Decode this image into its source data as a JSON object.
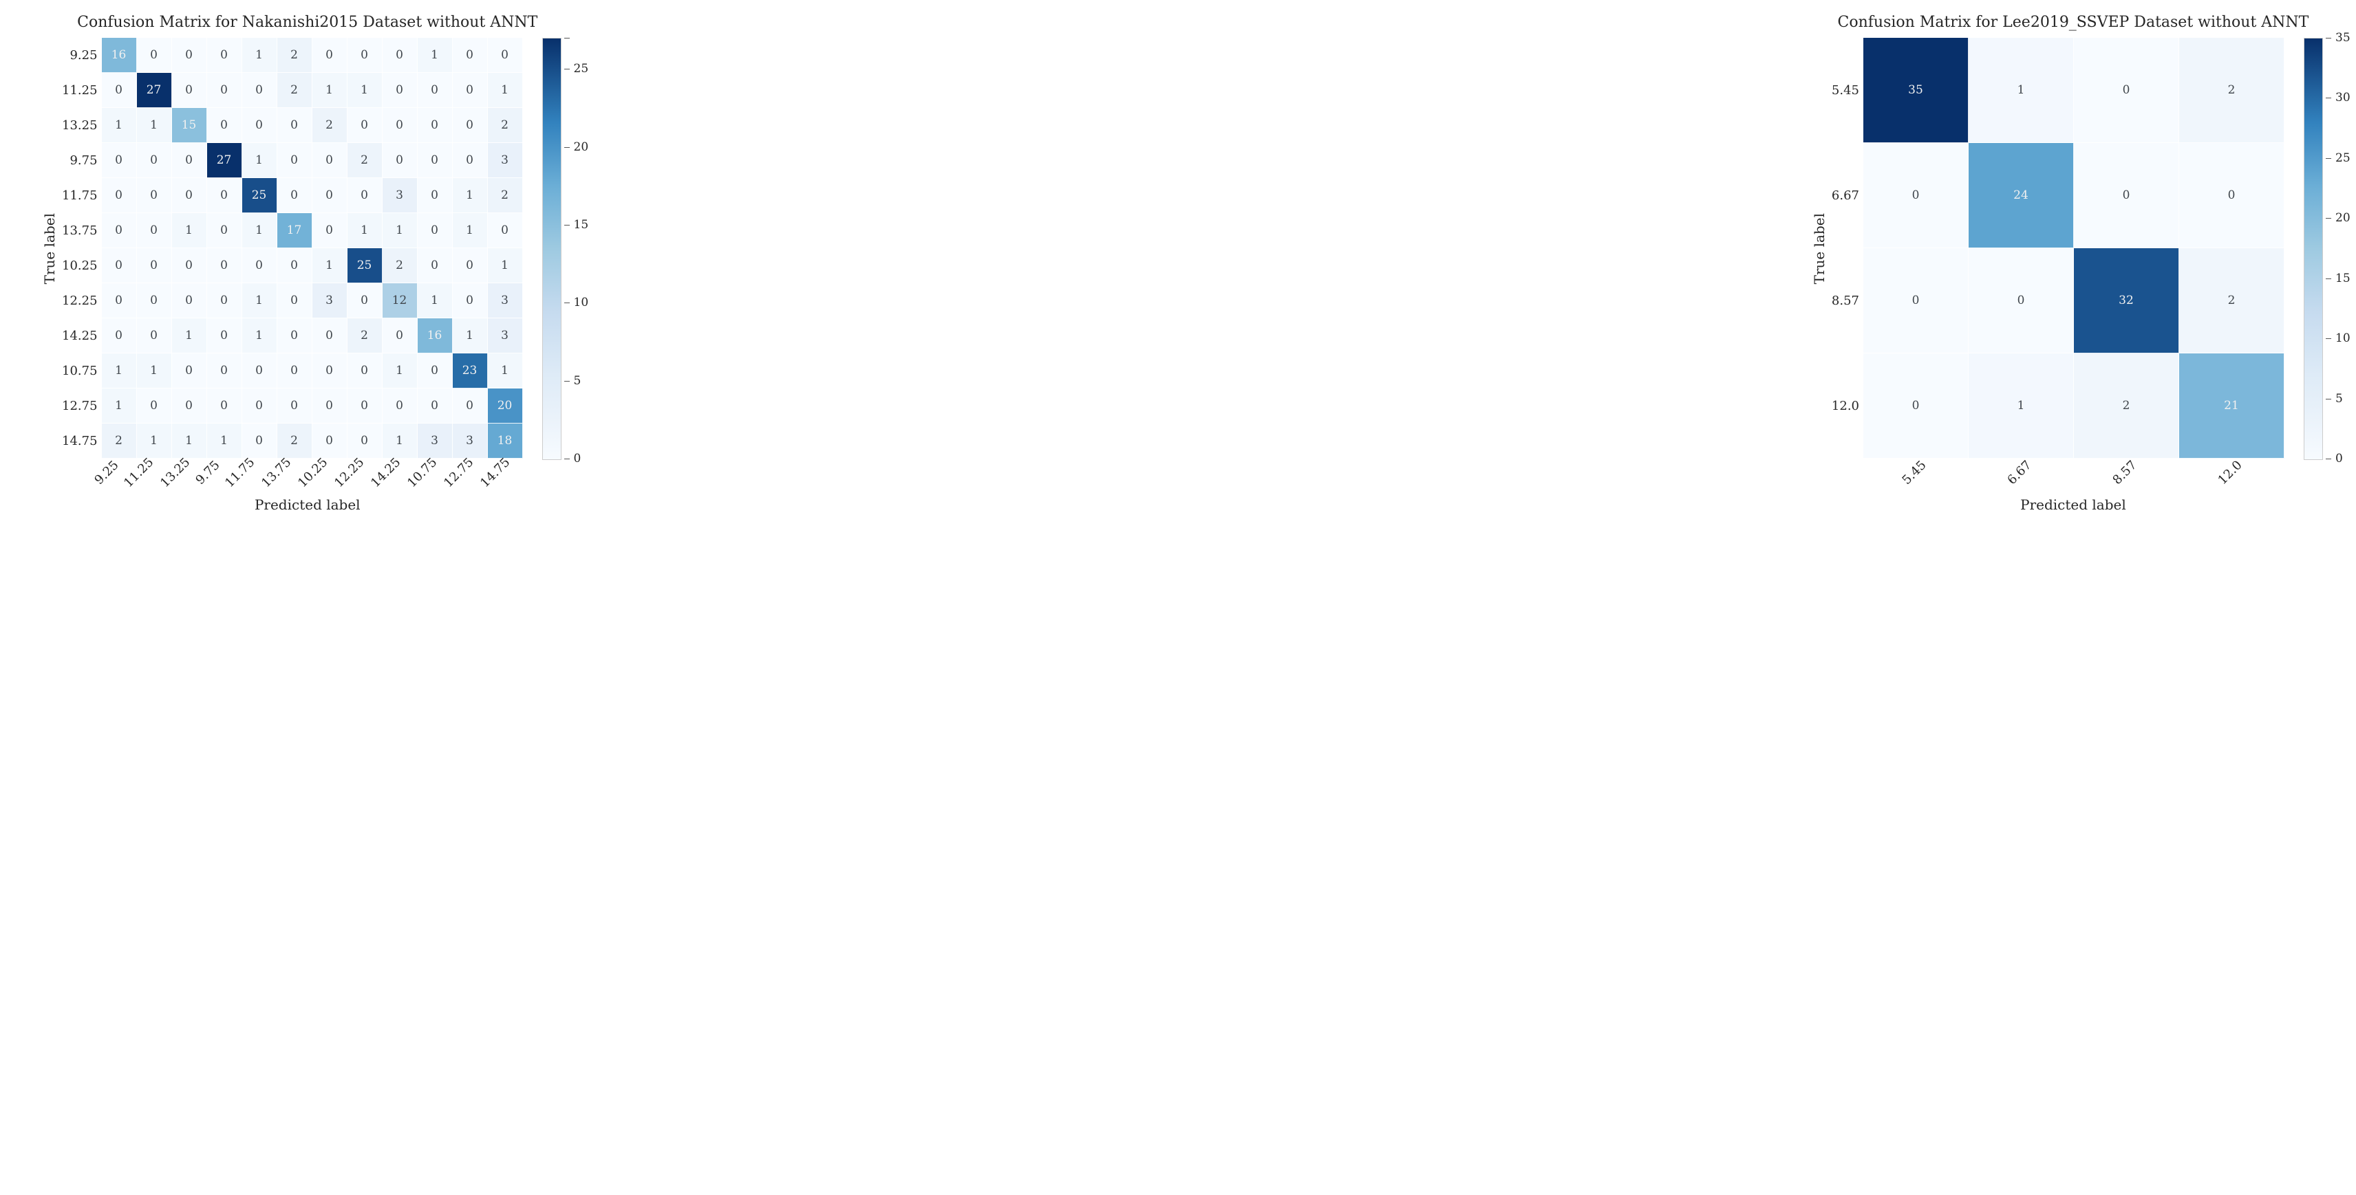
{
  "figure_width": 3424,
  "figure_height": 1738,
  "background_color": "#ffffff",
  "panels": [
    {
      "id": "left",
      "title": "Confusion Matrix for Nakanishi2015 Dataset without ANNT",
      "ylabel": "True label",
      "xlabel": "Predicted label",
      "row_labels": [
        "9.25",
        "11.25",
        "13.25",
        "9.75",
        "11.75",
        "13.75",
        "10.25",
        "12.25",
        "14.25",
        "10.75",
        "12.75",
        "14.75"
      ],
      "col_labels": [
        "9.25",
        "11.25",
        "13.25",
        "9.75",
        "11.75",
        "13.75",
        "10.25",
        "12.25",
        "14.25",
        "10.75",
        "12.75",
        "14.75"
      ],
      "matrix": [
        [
          16,
          0,
          0,
          0,
          1,
          2,
          0,
          0,
          0,
          1,
          0,
          0
        ],
        [
          0,
          27,
          0,
          0,
          0,
          2,
          1,
          1,
          0,
          0,
          0,
          1
        ],
        [
          1,
          1,
          15,
          0,
          0,
          0,
          2,
          0,
          0,
          0,
          0,
          2
        ],
        [
          0,
          0,
          0,
          27,
          1,
          0,
          0,
          2,
          0,
          0,
          0,
          3
        ],
        [
          0,
          0,
          0,
          0,
          25,
          0,
          0,
          0,
          3,
          0,
          1,
          2
        ],
        [
          0,
          0,
          1,
          0,
          1,
          17,
          0,
          1,
          1,
          0,
          1,
          0
        ],
        [
          0,
          0,
          0,
          0,
          0,
          0,
          1,
          25,
          2,
          0,
          0,
          1
        ],
        [
          0,
          0,
          0,
          0,
          1,
          0,
          3,
          0,
          12,
          1,
          0,
          3
        ],
        [
          0,
          0,
          1,
          0,
          1,
          0,
          0,
          2,
          0,
          16,
          1,
          3
        ],
        [
          1,
          1,
          0,
          0,
          0,
          0,
          0,
          0,
          1,
          0,
          23,
          1
        ],
        [
          1,
          0,
          0,
          0,
          0,
          0,
          0,
          0,
          0,
          0,
          0,
          20
        ],
        [
          2,
          1,
          1,
          1,
          0,
          2,
          0,
          0,
          1,
          3,
          3,
          18
        ]
      ],
      "vmin": 0,
      "vmax": 27,
      "cell_size": 51,
      "cbar_ticks": [
        27,
        25,
        20,
        15,
        10,
        5,
        0
      ],
      "cbar_tick_labels": [
        "",
        "25",
        "20",
        "15",
        "10",
        "5",
        "0"
      ],
      "label_fontsize": 20,
      "tick_fontsize": 18,
      "title_fontsize": 22,
      "annot_fontsize": 17
    },
    {
      "id": "right",
      "title": "Confusion Matrix for Lee2019_SSVEP Dataset without ANNT",
      "ylabel": "True label",
      "xlabel": "Predicted label",
      "row_labels": [
        "5.45",
        "6.67",
        "8.57",
        "12.0"
      ],
      "col_labels": [
        "5.45",
        "6.67",
        "8.57",
        "12.0"
      ],
      "matrix": [
        [
          35,
          1,
          0,
          2
        ],
        [
          0,
          24,
          0,
          0
        ],
        [
          0,
          0,
          32,
          2
        ],
        [
          0,
          1,
          2,
          21
        ]
      ],
      "vmin": 0,
      "vmax": 35,
      "cell_size": 153,
      "cbar_ticks": [
        35,
        30,
        25,
        20,
        15,
        10,
        5,
        0
      ],
      "cbar_tick_labels": [
        "35",
        "30",
        "25",
        "20",
        "15",
        "10",
        "5",
        "0"
      ],
      "label_fontsize": 20,
      "tick_fontsize": 18,
      "title_fontsize": 22,
      "annot_fontsize": 17
    }
  ],
  "colormap": {
    "name": "Blues-like",
    "stops": [
      {
        "t": 0.0,
        "color": "#f7fbff"
      },
      {
        "t": 0.1,
        "color": "#eaf2fa"
      },
      {
        "t": 0.2,
        "color": "#deebf7"
      },
      {
        "t": 0.35,
        "color": "#c6dbef"
      },
      {
        "t": 0.5,
        "color": "#9ecae1"
      },
      {
        "t": 0.65,
        "color": "#6baed6"
      },
      {
        "t": 0.8,
        "color": "#3282be"
      },
      {
        "t": 1.0,
        "color": "#08306b"
      }
    ],
    "text_light": "#f0f0f0",
    "text_dark": "#40464c",
    "text_threshold": 0.55
  },
  "grid_line_color": "#ffffff"
}
